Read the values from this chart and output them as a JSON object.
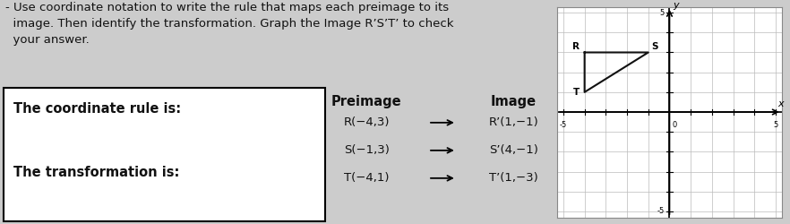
{
  "title_line1": "- Use coordinate notation to write the rule that maps each preimage to its",
  "title_line2": "  image. Then identify the transformation. Graph the Image R’S’T’ to check",
  "title_line3": "  your answer.",
  "box_label": "The coordinate rule is:",
  "transform_label": "The transformation is:",
  "preimage_label": "Preimage",
  "image_label": "Image",
  "rows": [
    {
      "pre": "R(−4,3)",
      "img": "R’(1,−1)"
    },
    {
      "pre": "S(−1,3)",
      "img": "S’(4,−1)"
    },
    {
      "pre": "T(−4,1)",
      "img": "T’(1,−3)"
    }
  ],
  "preimage_points": [
    [
      -4,
      3
    ],
    [
      -1,
      3
    ],
    [
      -4,
      1
    ]
  ],
  "graph_xlim": [
    -5,
    5
  ],
  "graph_ylim": [
    -5,
    5
  ],
  "bg_color": "#cccccc",
  "text_color": "#111111",
  "grid_color": "#bbbbbb",
  "axis_color": "#111111",
  "triangle_color": "#111111",
  "title_fontsize": 9.5,
  "body_fontsize": 9.5,
  "header_fontsize": 10.5,
  "point_label_fontsize": 7.5
}
